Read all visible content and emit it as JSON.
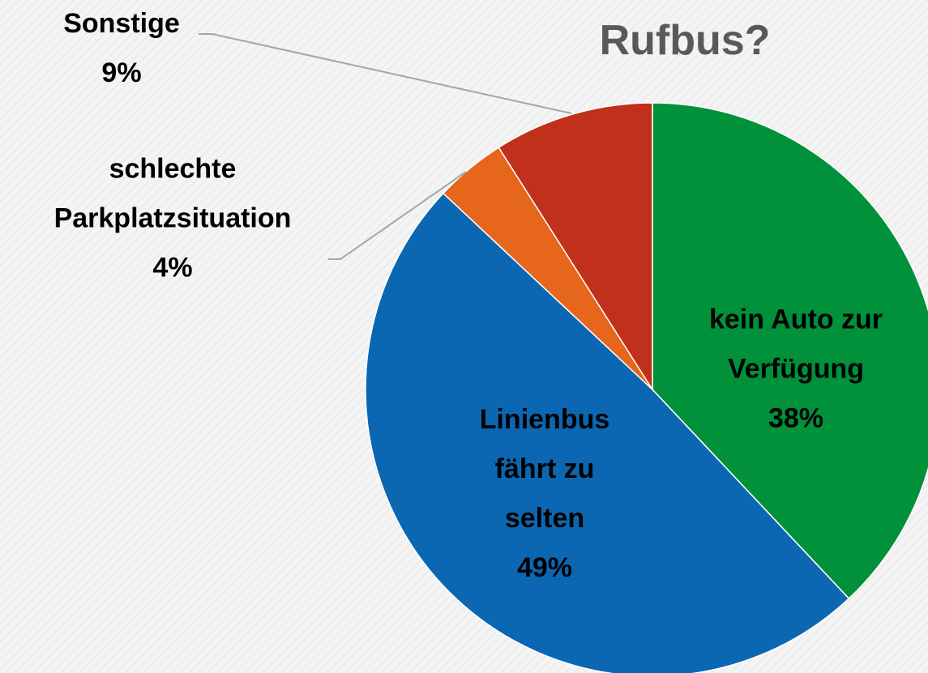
{
  "chart_data": {
    "type": "pie",
    "title": "Rufbus?",
    "categories": [
      "kein Auto zur Verfügung",
      "Linienbus fährt zu selten",
      "schlechte Parkplatzsituation",
      "Sonstige"
    ],
    "values": [
      38,
      49,
      4,
      9
    ],
    "value_labels": [
      "38%",
      "49%",
      "4%",
      "9%"
    ],
    "colors": [
      "#00913a",
      "#0b67b2",
      "#e6661c",
      "#c0301a"
    ]
  }
}
